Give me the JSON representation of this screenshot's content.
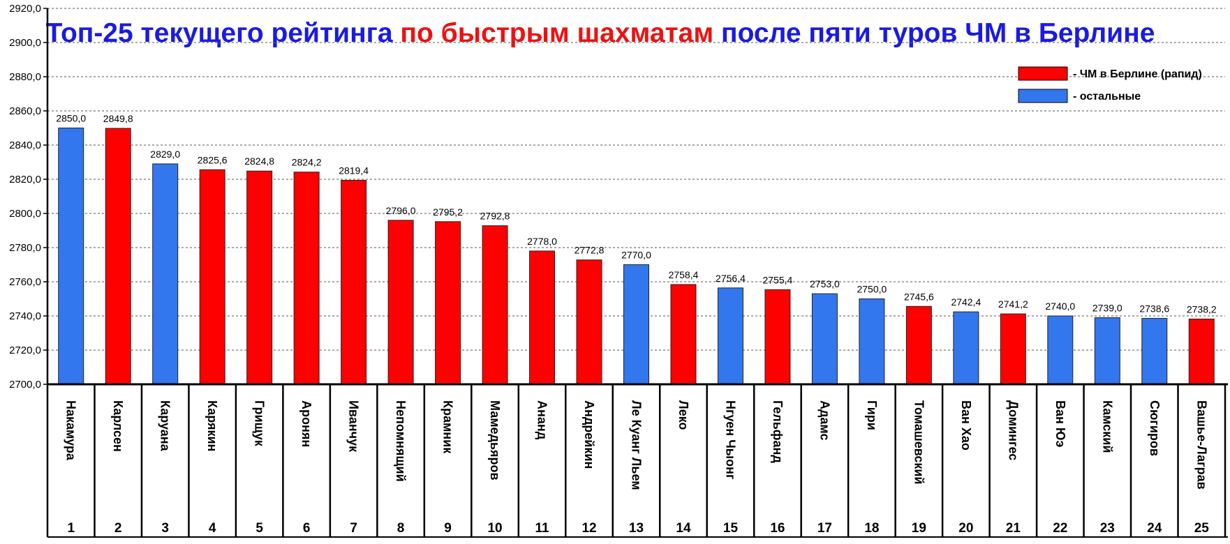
{
  "chart_data": {
    "type": "bar",
    "title": {
      "part1": "Топ-25 текущего рейтинга ",
      "part2": "по быстрым шахматам",
      "part3": " после пяти туров ЧМ в Берлине"
    },
    "colors": {
      "title_main": "#1a1ae6",
      "title_accent": "#ee1111",
      "series_berlin": "#ff0000",
      "series_other": "#3377ee"
    },
    "legend": {
      "placement": "top-right",
      "items": [
        {
          "key": "berlin",
          "label": "- ЧМ в Берлине (рапид)"
        },
        {
          "key": "other",
          "label": "- остальные"
        }
      ]
    },
    "ylim": [
      2700,
      2920
    ],
    "ytick_step": 20,
    "ytick_labels": [
      "2700,0",
      "2720,0",
      "2740,0",
      "2760,0",
      "2780,0",
      "2800,0",
      "2820,0",
      "2840,0",
      "2860,0",
      "2880,0",
      "2900,0",
      "2920,0"
    ],
    "grid": true,
    "categories": [
      "Накамура",
      "Карлсен",
      "Каруана",
      "Карякин",
      "Грищук",
      "Аронян",
      "Иванчук",
      "Непомнящий",
      "Крамник",
      "Мамедьяров",
      "Ананд",
      "Андрейкин",
      "Ле Куанг Льем",
      "Леко",
      "Нгуен Чыонг",
      "Гельфанд",
      "Адамс",
      "Гири",
      "Томашевский",
      "Ван Хао",
      "Домингес",
      "Ван Юэ",
      "Камский",
      "Сюгиров",
      "Вашье-Лаграв"
    ],
    "ranks": [
      "1",
      "2",
      "3",
      "4",
      "5",
      "6",
      "7",
      "8",
      "9",
      "10",
      "11",
      "12",
      "13",
      "14",
      "15",
      "16",
      "17",
      "18",
      "19",
      "20",
      "21",
      "22",
      "23",
      "24",
      "25"
    ],
    "values": [
      2850.0,
      2849.8,
      2829.0,
      2825.6,
      2824.8,
      2824.2,
      2819.4,
      2796.0,
      2795.2,
      2792.8,
      2778.0,
      2772.8,
      2770.0,
      2758.4,
      2756.4,
      2755.4,
      2753.0,
      2750.0,
      2745.6,
      2742.4,
      2741.2,
      2740.0,
      2739.0,
      2738.6,
      2738.2
    ],
    "value_labels": [
      "2850,0",
      "2849,8",
      "2829,0",
      "2825,6",
      "2824,8",
      "2824,2",
      "2819,4",
      "2796,0",
      "2795,2",
      "2792,8",
      "2778,0",
      "2772,8",
      "2770,0",
      "2758,4",
      "2756,4",
      "2755,4",
      "2753,0",
      "2750,0",
      "2745,6",
      "2742,4",
      "2741,2",
      "2740,0",
      "2739,0",
      "2738,6",
      "2738,2"
    ],
    "groups": [
      "other",
      "berlin",
      "other",
      "berlin",
      "berlin",
      "berlin",
      "berlin",
      "berlin",
      "berlin",
      "berlin",
      "berlin",
      "berlin",
      "other",
      "berlin",
      "other",
      "berlin",
      "other",
      "other",
      "berlin",
      "other",
      "berlin",
      "other",
      "other",
      "other",
      "berlin"
    ]
  }
}
